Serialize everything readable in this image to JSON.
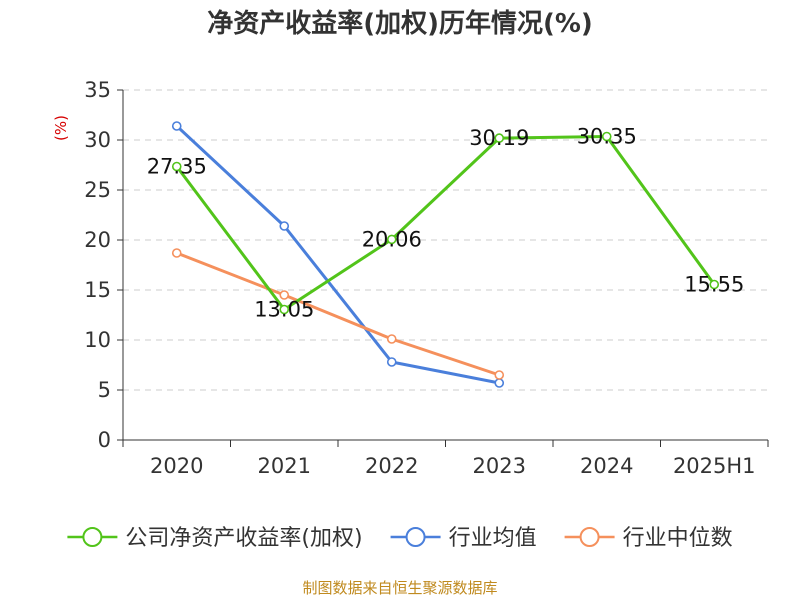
{
  "chart_data": {
    "type": "line",
    "title": "净资产收益率(加权)历年情况(%)",
    "ylabel": "(%)",
    "categories": [
      "2020",
      "2021",
      "2022",
      "2023",
      "2024",
      "2025H1"
    ],
    "ylim": [
      0,
      35
    ],
    "yticks": [
      "0",
      "5",
      "10",
      "15",
      "20",
      "25",
      "30",
      "35"
    ],
    "grid": true,
    "legend_position": "bottom",
    "series": [
      {
        "name": "公司净资产收益率(加权)",
        "color": "#52c41a",
        "values": [
          27.35,
          13.05,
          20.06,
          30.19,
          30.35,
          15.55
        ],
        "labels": [
          "27.35",
          "13.05",
          "20.06",
          "30.19",
          "30.35",
          "15.55"
        ]
      },
      {
        "name": "行业均值",
        "color": "#4a7fdb",
        "values": [
          31.4,
          21.4,
          7.8,
          5.7,
          null,
          null
        ]
      },
      {
        "name": "行业中位数",
        "color": "#f5905c",
        "values": [
          18.7,
          14.5,
          10.1,
          6.5,
          null,
          null
        ]
      }
    ]
  },
  "footer": {
    "source": "制图数据来自恒生聚源数据库"
  }
}
